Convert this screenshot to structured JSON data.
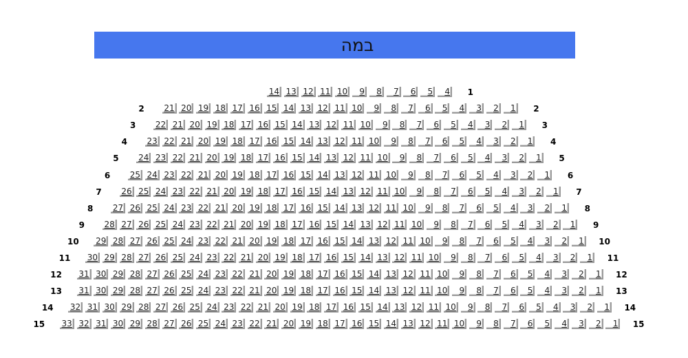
{
  "stage": {
    "label": "במה",
    "color": "#4677ee"
  },
  "rows": [
    {
      "label": "1",
      "left_label": false,
      "seats": [
        14,
        13,
        12,
        11,
        10,
        9,
        8,
        7,
        6,
        5,
        4
      ]
    },
    {
      "label": "2",
      "left_label": true,
      "seats": [
        21,
        20,
        19,
        18,
        17,
        16,
        15,
        14,
        13,
        12,
        11,
        10,
        9,
        8,
        7,
        6,
        5,
        4,
        3,
        2,
        1
      ]
    },
    {
      "label": "3",
      "left_label": true,
      "seats": [
        22,
        21,
        20,
        19,
        18,
        17,
        16,
        15,
        14,
        13,
        12,
        11,
        10,
        9,
        8,
        7,
        6,
        5,
        4,
        3,
        2,
        1
      ]
    },
    {
      "label": "4",
      "left_label": true,
      "seats": [
        23,
        22,
        21,
        20,
        19,
        18,
        17,
        16,
        15,
        14,
        13,
        12,
        11,
        10,
        9,
        8,
        7,
        6,
        5,
        4,
        3,
        2,
        1
      ]
    },
    {
      "label": "5",
      "left_label": true,
      "seats": [
        24,
        23,
        22,
        21,
        20,
        19,
        18,
        17,
        16,
        15,
        14,
        13,
        12,
        11,
        10,
        9,
        8,
        7,
        6,
        5,
        4,
        3,
        2,
        1
      ]
    },
    {
      "label": "6",
      "left_label": true,
      "seats": [
        25,
        24,
        23,
        22,
        21,
        20,
        19,
        18,
        17,
        16,
        15,
        14,
        13,
        12,
        11,
        10,
        9,
        8,
        7,
        6,
        5,
        4,
        3,
        2,
        1
      ]
    },
    {
      "label": "7",
      "left_label": true,
      "seats": [
        26,
        25,
        24,
        23,
        22,
        21,
        20,
        19,
        18,
        17,
        16,
        15,
        14,
        13,
        12,
        11,
        10,
        9,
        8,
        7,
        6,
        5,
        4,
        3,
        2,
        1
      ]
    },
    {
      "label": "8",
      "left_label": true,
      "seats": [
        27,
        26,
        25,
        24,
        23,
        22,
        21,
        20,
        19,
        18,
        17,
        16,
        15,
        14,
        13,
        12,
        11,
        10,
        9,
        8,
        7,
        6,
        5,
        4,
        3,
        2,
        1
      ]
    },
    {
      "label": "9",
      "left_label": true,
      "seats": [
        28,
        27,
        26,
        25,
        24,
        23,
        22,
        21,
        20,
        19,
        18,
        17,
        16,
        15,
        14,
        13,
        12,
        11,
        10,
        9,
        8,
        7,
        6,
        5,
        4,
        3,
        2,
        1
      ]
    },
    {
      "label": "10",
      "left_label": true,
      "seats": [
        29,
        28,
        27,
        26,
        25,
        24,
        23,
        22,
        21,
        20,
        19,
        18,
        17,
        16,
        15,
        14,
        13,
        12,
        11,
        10,
        9,
        8,
        7,
        6,
        5,
        4,
        3,
        2,
        1
      ]
    },
    {
      "label": "11",
      "left_label": true,
      "seats": [
        30,
        29,
        28,
        27,
        26,
        25,
        24,
        23,
        22,
        21,
        20,
        19,
        18,
        17,
        16,
        15,
        14,
        13,
        12,
        11,
        10,
        9,
        8,
        7,
        6,
        5,
        4,
        3,
        2,
        1
      ]
    },
    {
      "label": "12",
      "left_label": true,
      "seats": [
        31,
        30,
        29,
        28,
        27,
        26,
        25,
        24,
        23,
        22,
        21,
        20,
        19,
        18,
        17,
        16,
        15,
        14,
        13,
        12,
        11,
        10,
        9,
        8,
        7,
        6,
        5,
        4,
        3,
        2,
        1
      ]
    },
    {
      "label": "13",
      "left_label": true,
      "seats": [
        31,
        30,
        29,
        28,
        27,
        26,
        25,
        24,
        23,
        22,
        21,
        20,
        19,
        18,
        17,
        16,
        15,
        14,
        13,
        12,
        11,
        10,
        9,
        8,
        7,
        6,
        5,
        4,
        3,
        2,
        1
      ]
    },
    {
      "label": "14",
      "left_label": true,
      "seats": [
        32,
        31,
        30,
        29,
        28,
        27,
        26,
        25,
        24,
        23,
        22,
        21,
        20,
        19,
        18,
        17,
        16,
        15,
        14,
        13,
        12,
        11,
        10,
        9,
        8,
        7,
        6,
        5,
        4,
        3,
        2,
        1
      ]
    },
    {
      "label": "15",
      "left_label": true,
      "seats": [
        33,
        32,
        31,
        30,
        29,
        28,
        27,
        26,
        25,
        24,
        23,
        22,
        21,
        20,
        19,
        18,
        17,
        16,
        15,
        14,
        13,
        12,
        11,
        10,
        9,
        8,
        7,
        6,
        5,
        4,
        3,
        2,
        1
      ]
    }
  ]
}
